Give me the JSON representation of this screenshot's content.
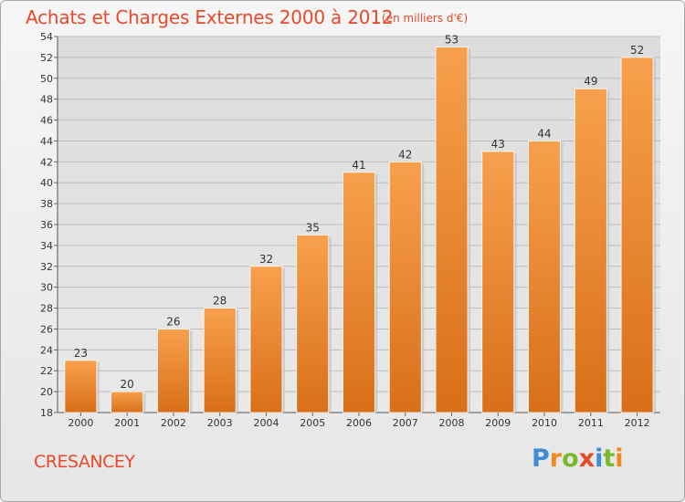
{
  "header": {
    "title": "Achats et Charges Externes 2000 à 2012",
    "subtitle": "(en milliers d'€)"
  },
  "footer": {
    "place": "CRESANCEY",
    "logo": "Proxiti"
  },
  "colors": {
    "title": "#e8492a",
    "bar_top": "#f7a04d",
    "bar_bottom": "#d96f18",
    "logo": [
      "#3c8dd8",
      "#f08a1c",
      "#7ab929",
      "#e8492a",
      "#3c8dd8",
      "#7ab929",
      "#f08a1c"
    ]
  },
  "chart_data": {
    "type": "bar",
    "title": "Achats et Charges Externes 2000 à 2012",
    "categories": [
      "2000",
      "2001",
      "2002",
      "2003",
      "2004",
      "2005",
      "2006",
      "2007",
      "2008",
      "2009",
      "2010",
      "2011",
      "2012"
    ],
    "values": [
      23,
      20,
      26,
      28,
      32,
      35,
      41,
      42,
      53,
      43,
      44,
      49,
      52
    ],
    "xlabel": "",
    "ylabel": "",
    "ylim": [
      18,
      54
    ],
    "yticks": [
      18,
      20,
      22,
      24,
      26,
      28,
      30,
      32,
      34,
      36,
      38,
      40,
      42,
      44,
      46,
      48,
      50,
      52,
      54
    ],
    "grid": true,
    "data_labels": true
  }
}
